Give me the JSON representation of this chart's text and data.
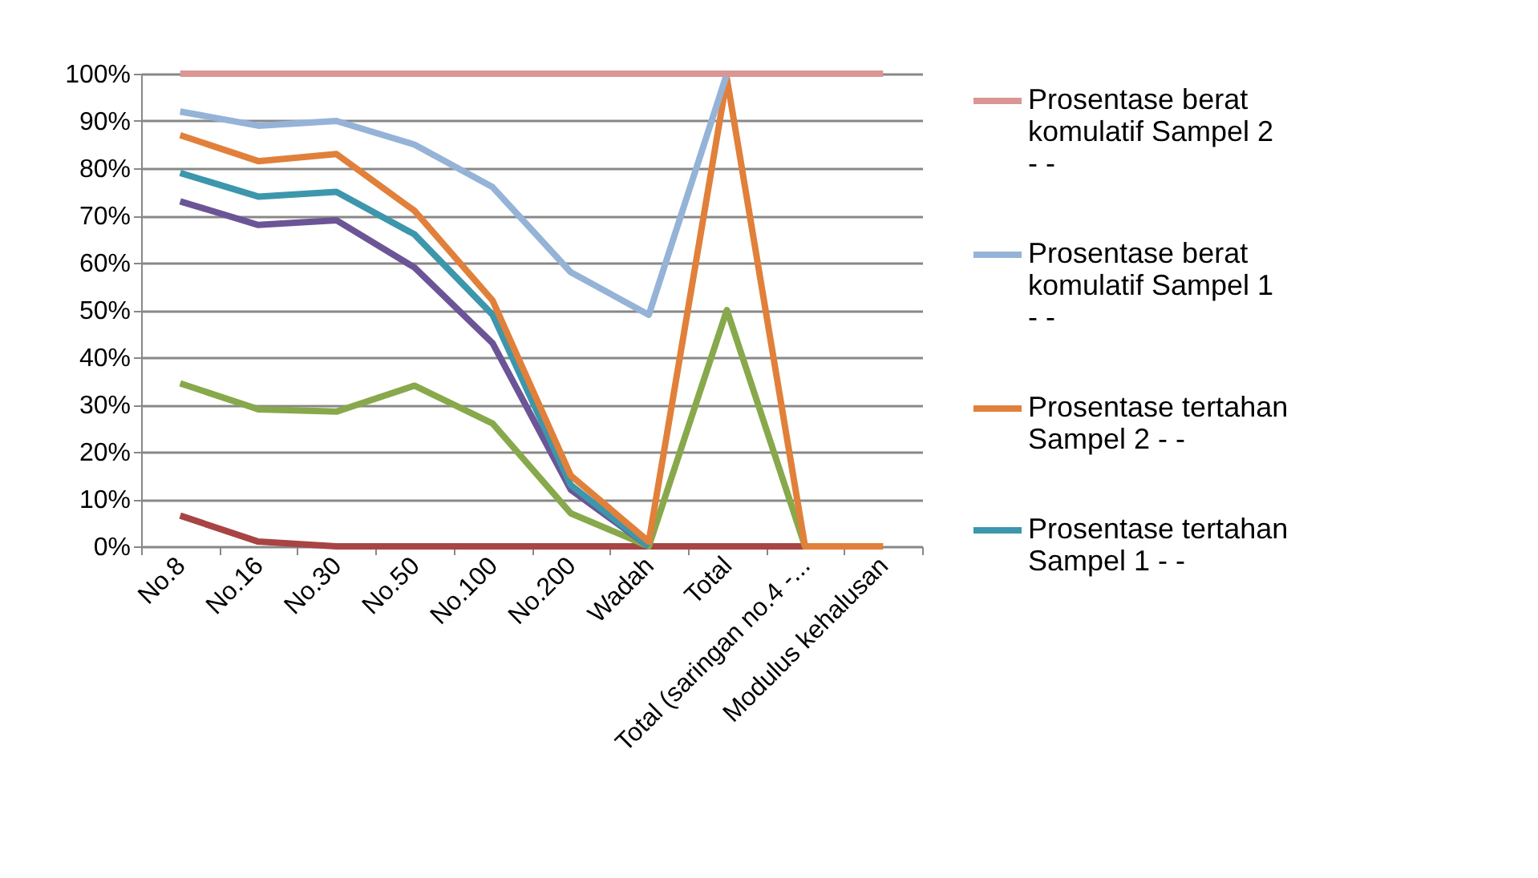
{
  "chart_data": {
    "type": "line",
    "categories": [
      "No.8",
      "No.16",
      "No.30",
      "No.50",
      "No.100",
      "No.200",
      "Wadah",
      "Total",
      "Total (saringan no.4 -...",
      "Modulus kehalusan"
    ],
    "series": [
      {
        "name": "Prosentase berat komulatif Sampel 2 - -",
        "color": "#d99694",
        "values": [
          100,
          100,
          100,
          100,
          100,
          100,
          100,
          100,
          100,
          100
        ]
      },
      {
        "name": "Prosentase berat komulatif Sampel 1 - -",
        "color": "#95b3d7",
        "values": [
          92,
          89,
          90,
          85,
          76,
          58,
          49,
          100,
          null,
          null
        ]
      },
      {
        "name": "Prosentase tertahan Sampel 2 - -",
        "color": "#e0803a",
        "values": [
          87,
          81.5,
          83,
          71,
          52,
          15,
          1,
          99,
          0,
          0
        ]
      },
      {
        "name": "Prosentase tertahan Sampel 1 - -",
        "color": "#3c96ac",
        "values": [
          79,
          74,
          75,
          66,
          49,
          13,
          0,
          null,
          null,
          null
        ]
      },
      {
        "color": "#6b5596",
        "values": [
          73,
          68,
          69,
          59,
          43,
          12,
          0,
          null,
          null,
          null
        ]
      },
      {
        "color": "#87a94b",
        "values": [
          34.5,
          29,
          28.5,
          34,
          26,
          7,
          0,
          50,
          0,
          null
        ]
      },
      {
        "color": "#a84443",
        "values": [
          6.5,
          1,
          0,
          0,
          0,
          0,
          0,
          0,
          0,
          null
        ]
      }
    ],
    "ylim": [
      0,
      100
    ],
    "yticks": [
      {
        "value": 0,
        "label": "0%"
      },
      {
        "value": 10,
        "label": "10%"
      },
      {
        "value": 20,
        "label": "20%"
      },
      {
        "value": 30,
        "label": "30%"
      },
      {
        "value": 40,
        "label": "40%"
      },
      {
        "value": 50,
        "label": "50%"
      },
      {
        "value": 60,
        "label": "60%"
      },
      {
        "value": 70,
        "label": "70%"
      },
      {
        "value": 80,
        "label": "80%"
      },
      {
        "value": 90,
        "label": "90%"
      },
      {
        "value": 100,
        "label": "100%"
      }
    ],
    "grid": "y",
    "legend": "right",
    "marker": "none",
    "line_style": "solid"
  }
}
